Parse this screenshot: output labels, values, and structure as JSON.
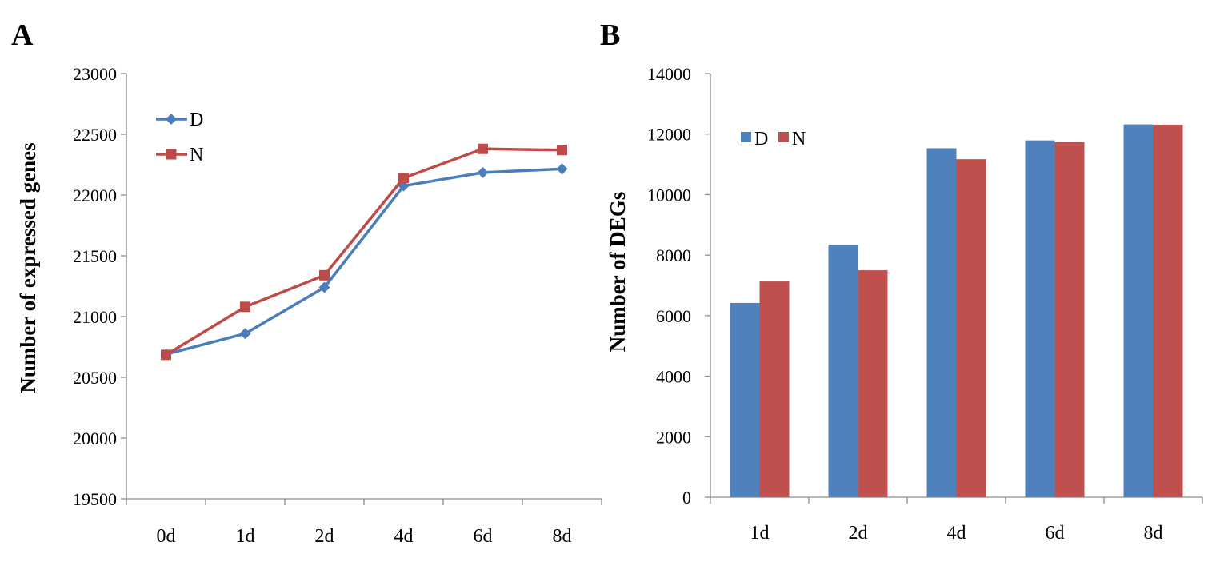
{
  "chart_data": [
    {
      "panel": "A",
      "type": "line",
      "title": "",
      "xlabel": "",
      "ylabel": "Number of expressed genes",
      "categories": [
        "0d",
        "1d",
        "2d",
        "4d",
        "6d",
        "8d"
      ],
      "ylim": [
        19500,
        23000
      ],
      "yticks": [
        19500,
        20000,
        20500,
        21000,
        21500,
        22000,
        22500,
        23000
      ],
      "grid": false,
      "legend_position": "top-left",
      "series": [
        {
          "name": "D",
          "color": "#4a7ebb",
          "marker": "diamond",
          "values": [
            20690,
            20860,
            21240,
            22075,
            22185,
            22215
          ]
        },
        {
          "name": "N",
          "color": "#be4b48",
          "marker": "square",
          "values": [
            20685,
            21080,
            21340,
            22140,
            22380,
            22370
          ]
        }
      ]
    },
    {
      "panel": "B",
      "type": "bar",
      "title": "",
      "xlabel": "",
      "ylabel": "Number of DEGs",
      "categories": [
        "1d",
        "2d",
        "4d",
        "6d",
        "8d"
      ],
      "ylim": [
        0,
        14000
      ],
      "yticks": [
        0,
        2000,
        4000,
        6000,
        8000,
        10000,
        12000,
        14000
      ],
      "grid": false,
      "legend_position": "top-left",
      "series": [
        {
          "name": "D",
          "color": "#4f81bd",
          "values": [
            6420,
            8340,
            11530,
            11790,
            12320
          ]
        },
        {
          "name": "N",
          "color": "#c0504d",
          "values": [
            7130,
            7500,
            11170,
            11740,
            12310
          ]
        }
      ]
    }
  ]
}
